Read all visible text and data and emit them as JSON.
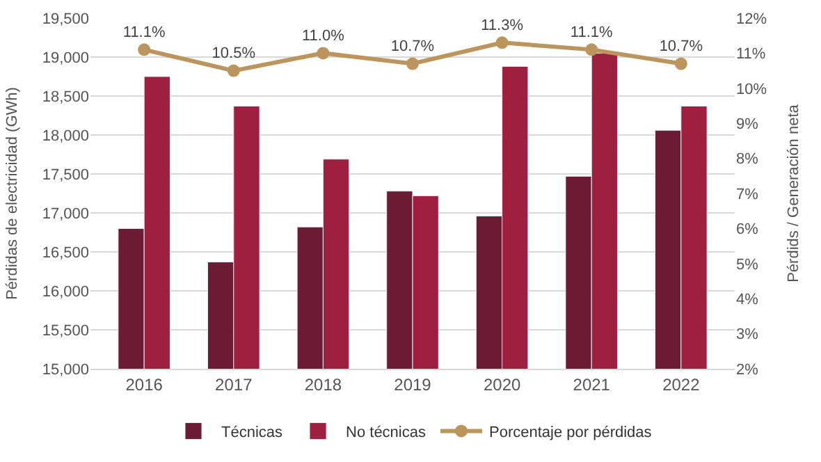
{
  "chart_data": {
    "type": "bar",
    "ylabel": "Pérdidas de electricidad (GWh)",
    "y2label": "Pérdids / Generación neta",
    "categories": [
      "2016",
      "2017",
      "2018",
      "2019",
      "2020",
      "2021",
      "2022"
    ],
    "series": [
      {
        "name": "Técnicas",
        "color": "#6b1c33",
        "values": [
          16800,
          16370,
          16820,
          17280,
          16960,
          17470,
          18060
        ]
      },
      {
        "name": "No técnicas",
        "color": "#9e1f3e",
        "values": [
          18750,
          18370,
          17690,
          17220,
          18880,
          19050,
          18370
        ]
      },
      {
        "name": "Porcentaje por pérdidas",
        "type": "line",
        "axis": "y2",
        "color": "#bc955c",
        "marker": "circle",
        "values": [
          11.1,
          10.5,
          11.0,
          10.7,
          11.3,
          11.1,
          10.7
        ],
        "value_labels": [
          "11.1%",
          "10.5%",
          "11.0%",
          "10.7%",
          "11.3%",
          "11.1%",
          "10.7%"
        ]
      }
    ],
    "ylim": [
      15000,
      19500
    ],
    "yticks": [
      {
        "value": 15000,
        "label": "15,000"
      },
      {
        "value": 15500,
        "label": "15,500"
      },
      {
        "value": 16000,
        "label": "16,000"
      },
      {
        "value": 16500,
        "label": "16,500"
      },
      {
        "value": 17000,
        "label": "17,000"
      },
      {
        "value": 17500,
        "label": "17,500"
      },
      {
        "value": 18000,
        "label": "18,000"
      },
      {
        "value": 18500,
        "label": "18,500"
      },
      {
        "value": 19000,
        "label": "19,000"
      },
      {
        "value": 19500,
        "label": "19,500"
      }
    ],
    "y2lim": [
      2,
      12
    ],
    "y2ticks": [
      {
        "value": 2,
        "label": "2%"
      },
      {
        "value": 3,
        "label": "3%"
      },
      {
        "value": 4,
        "label": "4%"
      },
      {
        "value": 5,
        "label": "5%"
      },
      {
        "value": 6,
        "label": "6%"
      },
      {
        "value": 7,
        "label": "7%"
      },
      {
        "value": 8,
        "label": "8%"
      },
      {
        "value": 9,
        "label": "9%"
      },
      {
        "value": 10,
        "label": "10%"
      },
      {
        "value": 11,
        "label": "11%"
      },
      {
        "value": 12,
        "label": "12%"
      }
    ],
    "grid": "y",
    "legend": "bottom"
  }
}
